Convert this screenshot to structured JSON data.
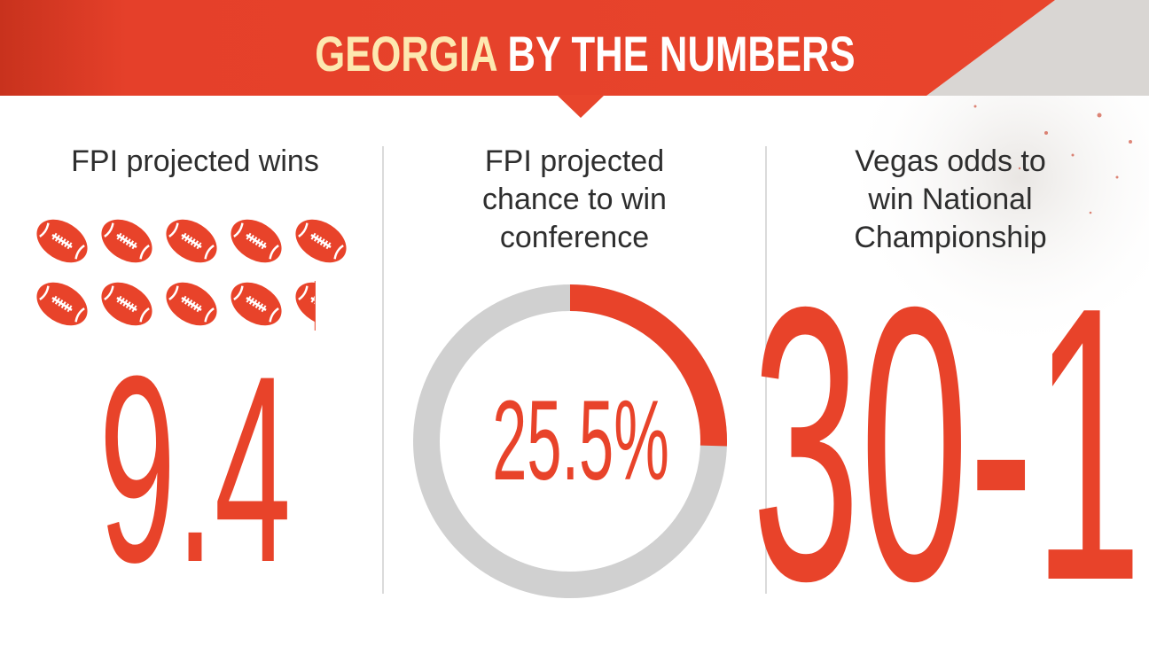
{
  "header": {
    "title_team": "GEORGIA",
    "title_rest": "BY THE NUMBERS"
  },
  "panels": [
    {
      "label": "FPI projected wins",
      "value": 9.4
    },
    {
      "label_lines": [
        "FPI projected",
        "chance to win",
        "conference"
      ],
      "value": 25.5,
      "value_label": "25.5%"
    },
    {
      "label_lines": [
        "Vegas odds to",
        "win National",
        "Championship"
      ],
      "value_text": "30-1"
    }
  ]
}
